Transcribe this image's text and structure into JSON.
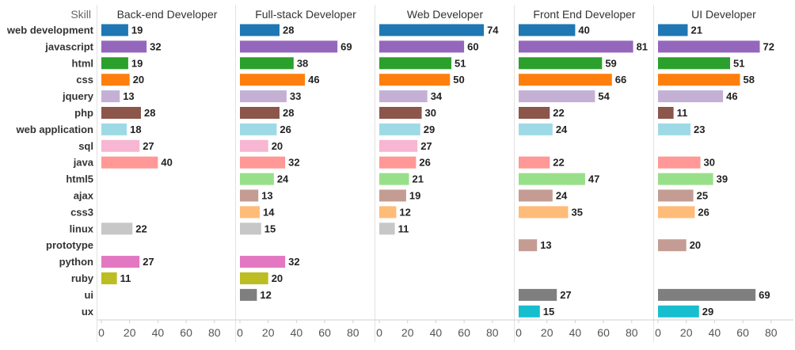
{
  "chart_data": {
    "type": "bar",
    "orientation": "horizontal",
    "row_header": "Skill",
    "categories": [
      "web development",
      "javascript",
      "html",
      "css",
      "jquery",
      "php",
      "web application",
      "sql",
      "java",
      "html5",
      "ajax",
      "css3",
      "linux",
      "prototype",
      "python",
      "ruby",
      "ui",
      "ux"
    ],
    "colors": [
      "#1f77b4",
      "#9467bd",
      "#2ca02c",
      "#ff7f0e",
      "#c5b0d5",
      "#8c564b",
      "#9edae5",
      "#f7b6d2",
      "#ff9896",
      "#98df8a",
      "#c49c94",
      "#ffbb78",
      "#c7c7c7",
      "#c49c94",
      "#e377c2",
      "#bcbd22",
      "#7f7f7f",
      "#17becf"
    ],
    "panels": [
      {
        "name": "Back-end Developer",
        "values": [
          19,
          32,
          19,
          20,
          13,
          28,
          18,
          27,
          40,
          null,
          null,
          null,
          22,
          null,
          27,
          11,
          null,
          null
        ]
      },
      {
        "name": "Full-stack Developer",
        "values": [
          28,
          69,
          38,
          46,
          33,
          28,
          26,
          20,
          32,
          24,
          13,
          14,
          15,
          null,
          32,
          20,
          12,
          null
        ]
      },
      {
        "name": "Web Developer",
        "values": [
          74,
          60,
          51,
          50,
          34,
          30,
          29,
          27,
          26,
          21,
          19,
          12,
          11,
          null,
          null,
          null,
          null,
          null
        ]
      },
      {
        "name": "Front End Developer",
        "values": [
          40,
          81,
          59,
          66,
          54,
          22,
          24,
          null,
          22,
          47,
          24,
          35,
          null,
          13,
          null,
          null,
          27,
          15
        ]
      },
      {
        "name": "UI Developer",
        "values": [
          21,
          72,
          51,
          58,
          46,
          11,
          23,
          null,
          30,
          39,
          25,
          26,
          null,
          20,
          null,
          null,
          69,
          29
        ]
      }
    ],
    "x_ticks": [
      "0",
      "20",
      "40",
      "60",
      "80"
    ],
    "xlim": [
      0,
      95
    ],
    "grid": false
  }
}
